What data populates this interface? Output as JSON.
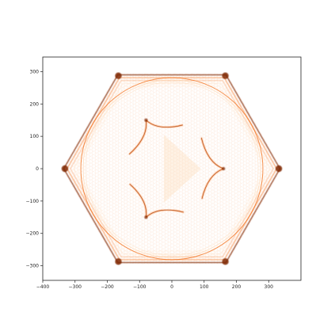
{
  "chart_data": {
    "type": "heatmap",
    "title": "",
    "xlabel": "",
    "ylabel": "",
    "xlim": [
      -400,
      400
    ],
    "ylim": [
      -345,
      345
    ],
    "x_ticks": [
      "−400",
      "−300",
      "−200",
      "−100",
      "0",
      "100",
      "200",
      "300"
    ],
    "y_ticks": [
      "300",
      "200",
      "100",
      "0",
      "−100",
      "−200",
      "−300"
    ],
    "x_tick_values": [
      -400,
      -300,
      -200,
      -100,
      0,
      100,
      200,
      300
    ],
    "y_tick_values": [
      300,
      200,
      100,
      0,
      -100,
      -200,
      -300
    ],
    "colormap": "Oranges",
    "grid": false,
    "legend": "none",
    "colors": {
      "light": "#fdd9b4",
      "mid": "#f3701b",
      "dark": "#7f2704"
    },
    "features": {
      "hexagon_circumradius": 340,
      "circle_radius": 282,
      "cusps": [
        {
          "x": -80,
          "y": 150
        },
        {
          "x": -80,
          "y": -150
        },
        {
          "x": 160,
          "y": 0
        }
      ],
      "cusp_arm_lengths": [
        115,
        118
      ],
      "triangle_corners": [
        {
          "x": -25,
          "y": 105
        },
        {
          "x": -25,
          "y": -105
        },
        {
          "x": 90,
          "y": 0
        }
      ]
    }
  }
}
